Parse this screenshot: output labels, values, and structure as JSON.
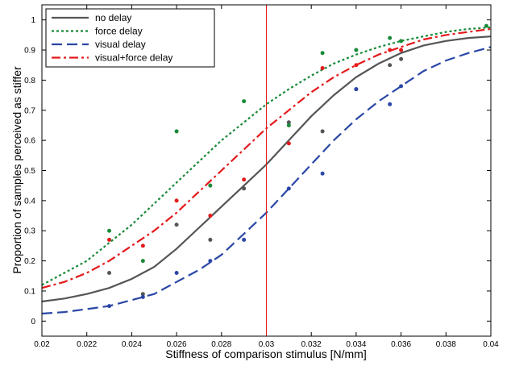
{
  "chart_data": {
    "type": "line",
    "title": "",
    "xlabel": "Stiffness of comparison stimulus [N/mm]",
    "ylabel": "Proportion of samples perceived as stiffer",
    "xlim": [
      0.02,
      0.04
    ],
    "ylim": [
      -0.05,
      1.05
    ],
    "xticks": [
      "0.02",
      "0.022",
      "0.024",
      "0.026",
      "0.028",
      "0.03",
      "0.032",
      "0.034",
      "0.036",
      "0.038",
      "0.04"
    ],
    "yticks": [
      "0",
      "0.1",
      "0.2",
      "0.3",
      "0.4",
      "0.5",
      "0.6",
      "0.7",
      "0.8",
      "0.9",
      "1"
    ],
    "legend_position": "top-left",
    "reference_line_x": 0.03,
    "reference_line_color": "#e41a1c",
    "series": [
      {
        "name": "no delay",
        "color": "#555555",
        "dash": "solid",
        "points_x": [
          0.023,
          0.0245,
          0.026,
          0.0275,
          0.029,
          0.031,
          0.0325,
          0.034,
          0.0355,
          0.036
        ],
        "points_y": [
          0.16,
          0.09,
          0.32,
          0.27,
          0.44,
          0.66,
          0.63,
          0.77,
          0.85,
          0.87
        ],
        "curve_x": [
          0.02,
          0.021,
          0.022,
          0.023,
          0.024,
          0.025,
          0.026,
          0.027,
          0.028,
          0.029,
          0.03,
          0.031,
          0.032,
          0.033,
          0.034,
          0.035,
          0.036,
          0.037,
          0.038,
          0.039,
          0.04
        ],
        "curve_y": [
          0.065,
          0.075,
          0.09,
          0.11,
          0.14,
          0.18,
          0.24,
          0.31,
          0.38,
          0.45,
          0.52,
          0.6,
          0.68,
          0.75,
          0.81,
          0.855,
          0.89,
          0.915,
          0.93,
          0.94,
          0.945
        ]
      },
      {
        "name": "force delay",
        "color": "#1a8a3a",
        "dash": "dotted",
        "points_x": [
          0.023,
          0.0245,
          0.026,
          0.0275,
          0.029,
          0.031,
          0.0325,
          0.034,
          0.0355,
          0.036,
          0.0398
        ],
        "points_y": [
          0.3,
          0.2,
          0.63,
          0.45,
          0.73,
          0.65,
          0.89,
          0.9,
          0.94,
          0.93,
          0.98
        ],
        "curve_x": [
          0.02,
          0.021,
          0.022,
          0.023,
          0.024,
          0.025,
          0.026,
          0.027,
          0.028,
          0.029,
          0.03,
          0.031,
          0.032,
          0.033,
          0.034,
          0.035,
          0.036,
          0.037,
          0.038,
          0.039,
          0.04
        ],
        "curve_y": [
          0.12,
          0.16,
          0.2,
          0.26,
          0.32,
          0.39,
          0.46,
          0.53,
          0.6,
          0.66,
          0.72,
          0.77,
          0.815,
          0.855,
          0.885,
          0.91,
          0.93,
          0.945,
          0.96,
          0.97,
          0.975
        ]
      },
      {
        "name": "visual delay",
        "color": "#2a47a6",
        "dash": "dashed",
        "points_x": [
          0.023,
          0.0245,
          0.026,
          0.0275,
          0.029,
          0.031,
          0.0325,
          0.034,
          0.0355,
          0.036
        ],
        "points_y": [
          0.05,
          0.08,
          0.16,
          0.2,
          0.27,
          0.44,
          0.49,
          0.77,
          0.72,
          0.78
        ],
        "curve_x": [
          0.02,
          0.021,
          0.022,
          0.023,
          0.024,
          0.025,
          0.026,
          0.027,
          0.028,
          0.029,
          0.03,
          0.031,
          0.032,
          0.033,
          0.034,
          0.035,
          0.036,
          0.037,
          0.038,
          0.039,
          0.04
        ],
        "curve_y": [
          0.025,
          0.03,
          0.04,
          0.05,
          0.07,
          0.09,
          0.13,
          0.17,
          0.22,
          0.29,
          0.36,
          0.44,
          0.52,
          0.6,
          0.67,
          0.73,
          0.78,
          0.83,
          0.865,
          0.89,
          0.91
        ]
      },
      {
        "name": "visual+force delay",
        "color": "#e41a1c",
        "dash": "dashdot",
        "points_x": [
          0.023,
          0.0245,
          0.026,
          0.0275,
          0.029,
          0.031,
          0.0325,
          0.034,
          0.0355,
          0.036
        ],
        "points_y": [
          0.27,
          0.25,
          0.4,
          0.35,
          0.47,
          0.59,
          0.84,
          0.85,
          0.9,
          0.9
        ],
        "curve_x": [
          0.02,
          0.021,
          0.022,
          0.023,
          0.024,
          0.025,
          0.026,
          0.027,
          0.028,
          0.029,
          0.03,
          0.031,
          0.032,
          0.033,
          0.034,
          0.035,
          0.036,
          0.037,
          0.038,
          0.039,
          0.04
        ],
        "curve_y": [
          0.11,
          0.13,
          0.16,
          0.2,
          0.25,
          0.3,
          0.36,
          0.43,
          0.5,
          0.57,
          0.64,
          0.7,
          0.76,
          0.81,
          0.85,
          0.885,
          0.91,
          0.935,
          0.95,
          0.96,
          0.97
        ]
      }
    ]
  }
}
